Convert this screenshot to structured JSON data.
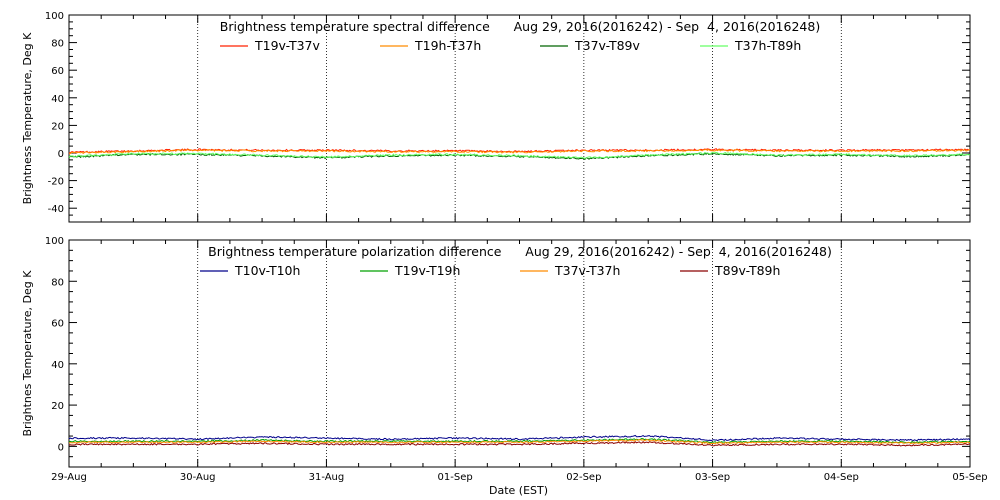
{
  "chart_data": [
    {
      "type": "line",
      "title": "Brightness temperature spectral difference      Aug 29, 2016(2016242) - Sep  4, 2016(2016248)",
      "xlabel": "",
      "ylabel": "Brightness Temperature, Deg K",
      "ylim": [
        -50,
        100
      ],
      "yticks": [
        -40,
        -20,
        0,
        20,
        40,
        60,
        80,
        100
      ],
      "xlim": [
        0,
        7
      ],
      "xtick_labels": [],
      "grid_vertical": true,
      "legend_position": "top",
      "x_days": [
        0,
        0.5,
        1,
        1.5,
        2,
        2.5,
        3,
        3.5,
        4,
        4.5,
        5,
        5.5,
        6,
        6.5,
        7
      ],
      "series": [
        {
          "name": "T19v-T37v",
          "color": "#ff2000",
          "values": [
            0.5,
            1.5,
            2.5,
            2.0,
            2.0,
            1.5,
            1.5,
            1.0,
            2.0,
            2.0,
            2.5,
            2.0,
            2.0,
            2.0,
            2.5
          ]
        },
        {
          "name": "T19h-T37h",
          "color": "#ff8c00",
          "values": [
            0.0,
            1.0,
            2.0,
            1.5,
            1.5,
            1.0,
            1.0,
            0.5,
            1.5,
            1.5,
            2.0,
            1.5,
            1.5,
            1.5,
            2.0
          ]
        },
        {
          "name": "T37v-T89v",
          "color": "#006400",
          "values": [
            -3.0,
            -1.0,
            -1.0,
            -2.0,
            -3.5,
            -2.0,
            -1.5,
            -2.5,
            -4.0,
            -2.0,
            -0.5,
            -2.0,
            -1.5,
            -2.5,
            -1.5
          ]
        },
        {
          "name": "T37h-T89h",
          "color": "#66ff66",
          "values": [
            -2.5,
            -0.5,
            -0.5,
            -1.5,
            -3.0,
            -1.5,
            -1.0,
            -2.0,
            -3.5,
            -1.5,
            0.0,
            -1.5,
            -1.0,
            -2.0,
            -1.0
          ]
        }
      ]
    },
    {
      "type": "line",
      "title": "Brightness temperature polarization difference      Aug 29, 2016(2016242) - Sep  4, 2016(2016248)",
      "xlabel": "Date (EST)",
      "ylabel": "Brightnes Temperature, Deg K",
      "ylim": [
        -10,
        100
      ],
      "yticks": [
        0,
        20,
        40,
        60,
        80,
        100
      ],
      "xlim": [
        0,
        7
      ],
      "xtick_labels": [
        "29-Aug",
        "30-Aug",
        "31-Aug",
        "01-Sep",
        "02-Sep",
        "03-Sep",
        "04-Sep",
        "05-Sep"
      ],
      "grid_vertical": true,
      "legend_position": "top",
      "x_days": [
        0,
        0.5,
        1,
        1.5,
        2,
        2.5,
        3,
        3.5,
        4,
        4.5,
        5,
        5.5,
        6,
        6.5,
        7
      ],
      "series": [
        {
          "name": "T10v-T10h",
          "color": "#00008b",
          "values": [
            4.0,
            4.0,
            3.5,
            4.5,
            4.0,
            3.5,
            4.0,
            3.5,
            4.5,
            5.0,
            3.0,
            4.0,
            3.5,
            3.0,
            3.5
          ]
        },
        {
          "name": "T19v-T19h",
          "color": "#00a000",
          "values": [
            2.5,
            2.5,
            2.5,
            3.0,
            2.5,
            2.5,
            2.5,
            2.5,
            3.0,
            3.5,
            2.0,
            2.5,
            2.5,
            2.0,
            2.5
          ]
        },
        {
          "name": "T37v-T37h",
          "color": "#ff8c00",
          "values": [
            2.0,
            2.0,
            2.0,
            2.5,
            2.0,
            2.0,
            2.0,
            2.0,
            2.5,
            3.0,
            1.5,
            2.0,
            2.0,
            1.5,
            2.0
          ]
        },
        {
          "name": "T89v-T89h",
          "color": "#8b0000",
          "values": [
            1.0,
            1.0,
            1.0,
            1.5,
            1.0,
            1.0,
            1.0,
            1.0,
            1.5,
            2.0,
            0.5,
            1.0,
            1.0,
            0.5,
            1.0
          ]
        }
      ]
    }
  ]
}
